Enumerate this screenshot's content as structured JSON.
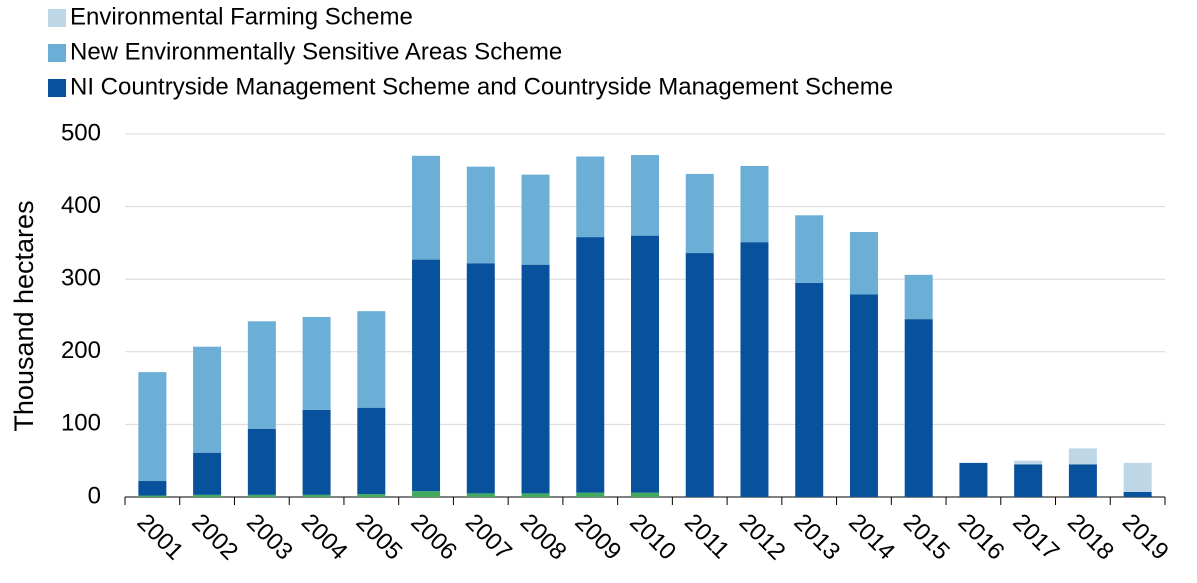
{
  "chart_data": {
    "type": "stacked-bar",
    "y_label": "Thousand hectares",
    "categories": [
      "2001",
      "2002",
      "2003",
      "2004",
      "2005",
      "2006",
      "2007",
      "2008",
      "2009",
      "2010",
      "2011",
      "2012",
      "2013",
      "2014",
      "2015",
      "2016",
      "2017",
      "2018",
      "2019"
    ],
    "series": [
      {
        "color": "#41ab5d",
        "values": [
          2,
          3,
          3,
          3,
          4,
          8,
          5,
          5,
          6,
          6,
          0,
          0,
          0,
          0,
          0,
          0,
          0,
          0,
          0
        ]
      },
      {
        "name": "NI Countryside Management Scheme and Countryside Management Scheme",
        "color": "#08519c",
        "values": [
          20,
          58,
          91,
          117,
          119,
          319,
          317,
          315,
          352,
          354,
          336,
          351,
          295,
          279,
          245,
          47,
          45,
          45,
          7
        ]
      },
      {
        "name": "New Environmentally Sensitive Areas Scheme",
        "color": "#6baed6",
        "values": [
          150,
          146,
          148,
          128,
          133,
          143,
          133,
          124,
          111,
          111,
          109,
          105,
          93,
          86,
          61,
          0,
          0,
          0,
          0
        ]
      },
      {
        "name": "Environmental Farming Scheme",
        "color": "#bdd7e7",
        "values": [
          0,
          0,
          0,
          0,
          0,
          0,
          0,
          0,
          0,
          0,
          0,
          0,
          0,
          0,
          0,
          0,
          5,
          22,
          40
        ]
      }
    ],
    "ylim": [
      0,
      500
    ],
    "yticks": [
      0,
      100,
      200,
      300,
      400,
      500
    ],
    "grid": true
  }
}
